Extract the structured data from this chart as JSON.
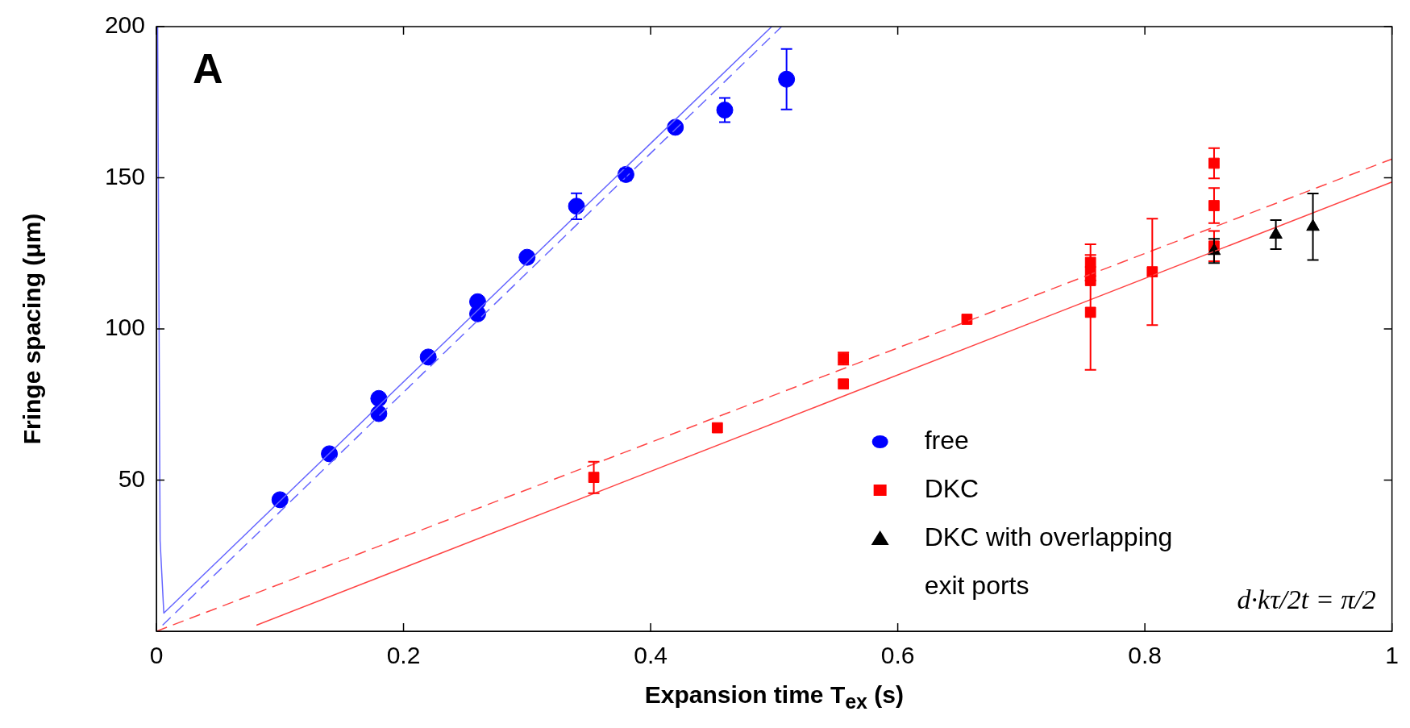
{
  "chart_data": {
    "type": "scatter",
    "xlabel": "Expansion time  T$_{ex}$ (s)",
    "ylabel": "Fringe spacing (μm)",
    "annotations": [
      "A",
      "d·kτ/2t = π/2"
    ],
    "xlim": [
      0,
      1
    ],
    "ylim": [
      0,
      200
    ],
    "xticks": [
      0,
      0.2,
      0.4,
      0.6,
      0.8,
      1
    ],
    "yticks": [
      50,
      100,
      150,
      200
    ],
    "grid": false,
    "legend": "bottom right",
    "series": [
      {
        "name": "free",
        "color": "#0000ff",
        "marker": "circle",
        "x": [
          0.1,
          0.14,
          0.18,
          0.18,
          0.22,
          0.26,
          0.26,
          0.3,
          0.34,
          0.38,
          0.42,
          0.46,
          0.51
        ],
        "values": [
          43.5,
          58.7,
          77,
          72,
          90.7,
          109,
          105,
          123.7,
          140.6,
          151.1,
          166.7,
          172.4,
          182.6
        ],
        "errors": [
          null,
          null,
          null,
          null,
          null,
          null,
          null,
          null,
          4.3,
          2,
          null,
          4,
          10
        ]
      },
      {
        "name": "DKC",
        "color": "#ff0000",
        "marker": "square",
        "x": [
          0.354,
          0.454,
          0.556,
          0.556,
          0.656,
          0.756,
          0.756,
          0.756,
          0.756,
          0.806,
          0.856,
          0.856,
          0.856
        ],
        "values": [
          50.9,
          67.3,
          90.2,
          81.8,
          103.2,
          122,
          119,
          116,
          105.5,
          118.9,
          154.8,
          140.8,
          127.4
        ],
        "errors": [
          5.2,
          null,
          2,
          null,
          null,
          6,
          null,
          null,
          19,
          17.6,
          5,
          5.8,
          5
        ]
      },
      {
        "name": "DKC with overlapping exit ports",
        "color": "#000000",
        "marker": "triangle",
        "x": [
          0.856,
          0.906,
          0.936
        ],
        "values": [
          125.8,
          131.2,
          133.8
        ],
        "errors": [
          4,
          4.8,
          11
        ]
      },
      {
        "type": "line",
        "color": "#6666ff",
        "line_style": "solid",
        "x": [
          0.001,
          0.003,
          0.006,
          0.498
        ],
        "values": [
          200,
          30,
          6,
          200
        ]
      },
      {
        "type": "line",
        "color": "#6666ff",
        "line_style": "dashed",
        "x": [
          0.005,
          0.506
        ],
        "values": [
          2,
          200
        ]
      },
      {
        "type": "line",
        "color": "#ff4444",
        "line_style": "dashed",
        "x": [
          0,
          1
        ],
        "values": [
          0,
          156.2
        ]
      },
      {
        "type": "line",
        "color": "#ff4444",
        "line_style": "solid",
        "x": [
          0.081,
          1
        ],
        "values": [
          2,
          148.6
        ]
      }
    ]
  }
}
